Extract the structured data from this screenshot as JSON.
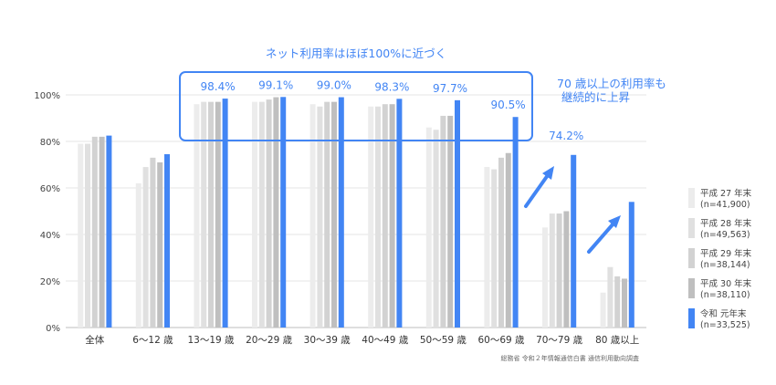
{
  "chart_data": {
    "type": "bar",
    "title": "ネット利用率はほぼ100%に近づく",
    "y_ticks": [
      "0%",
      "20%",
      "40%",
      "60%",
      "80%",
      "100%"
    ],
    "ylim": [
      0,
      100
    ],
    "grid": true,
    "legend_position": "right",
    "categories": [
      "全体",
      "6～12 歳",
      "13～19 歳",
      "20～29 歳",
      "30～39 歳",
      "40～49 歳",
      "50～59 歳",
      "60～69 歳",
      "70～79 歳",
      "80 歳以上"
    ],
    "series": [
      {
        "name": "平成 27 年末",
        "n": "(n=41,900)",
        "color": "#ececec",
        "values": [
          79,
          62,
          96,
          97,
          96,
          95,
          86,
          69,
          43,
          15
        ]
      },
      {
        "name": "平成 28 年末",
        "n": "(n=49,563)",
        "color": "#e0e0e0",
        "values": [
          79,
          69,
          97,
          97,
          95,
          95,
          85,
          68,
          49,
          26
        ]
      },
      {
        "name": "平成 29 年末",
        "n": "(n=38,144)",
        "color": "#d2d2d2",
        "values": [
          82,
          73,
          97,
          98,
          97,
          96,
          91,
          73,
          49,
          22
        ]
      },
      {
        "name": "平成 30 年末",
        "n": "(n=38,110)",
        "color": "#bfbfbf",
        "values": [
          82,
          71,
          97,
          99,
          97,
          96,
          91,
          75,
          50,
          21
        ]
      },
      {
        "name": "令和 元年末",
        "n": "(n=33,525)",
        "color": "#4285f4",
        "values": [
          82.5,
          74.5,
          98.4,
          99.1,
          99.0,
          98.3,
          97.7,
          90.5,
          74.2,
          54
        ]
      }
    ],
    "data_labels": [
      {
        "category_index": 2,
        "text": "98.4%"
      },
      {
        "category_index": 3,
        "text": "99.1%"
      },
      {
        "category_index": 4,
        "text": "99.0%"
      },
      {
        "category_index": 5,
        "text": "98.3%"
      },
      {
        "category_index": 6,
        "text": "97.7%"
      },
      {
        "category_index": 7,
        "text": "90.5%"
      },
      {
        "category_index": 8,
        "text": "74.2%"
      }
    ],
    "annotations": {
      "highlight": "ネット利用率はほぼ100%に近づく",
      "elderly_line1": "70 歳以上の利用率も",
      "elderly_line2": "継続的に上昇"
    },
    "source": "総務省 令和２年情報通信白書 通信利用動向調査"
  },
  "colors": {
    "accent": "#4285f4",
    "grid": "#e6e6e6"
  }
}
